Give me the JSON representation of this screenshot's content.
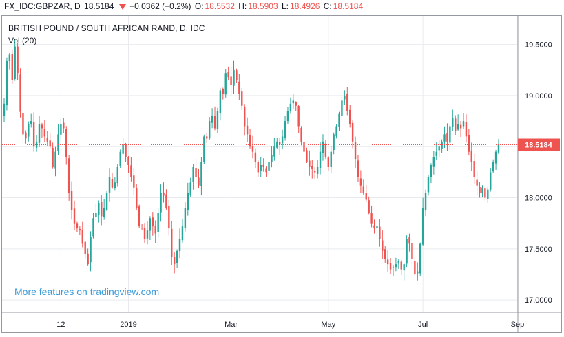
{
  "header": {
    "symbol": "FX_IDC:GBPZAR, D",
    "last": "18.5184",
    "change": "−0.0362 (−0.2%)",
    "o_label": "O:",
    "o_value": "18.5532",
    "h_label": "H:",
    "h_value": "18.5903",
    "l_label": "L:",
    "l_value": "18.4926",
    "c_label": "C:",
    "c_value": "18.5184"
  },
  "legend": {
    "title": "BRITISH POUND / SOUTH AFRICAN RAND, D, IDC",
    "volume": "Vol (20)"
  },
  "promo": "More features on tradingview.com",
  "colors": {
    "up": "#26a69a",
    "down": "#ef5350",
    "grid": "#e8eaee",
    "axis_text": "#131722",
    "price_line": "#ef5350"
  },
  "chart_data": {
    "type": "candlestick",
    "ylim": [
      16.88,
      19.78
    ],
    "y_ticks": [
      "19.5000",
      "19.0000",
      "18.5000",
      "18.0000",
      "17.5000",
      "17.0000"
    ],
    "y_tick_values": [
      19.5,
      19.0,
      18.5,
      18.0,
      17.5,
      17.0
    ],
    "x_ticks": [
      "12",
      "2019",
      "Mar",
      "May",
      "Jul",
      "Sep"
    ],
    "x_tick_index": [
      21,
      46,
      84,
      120,
      155,
      190
    ],
    "last_price": 18.5184,
    "last_price_label": "18.5184",
    "closes": [
      18.92,
      19.34,
      19.4,
      19.15,
      19.48,
      19.22,
      18.84,
      18.62,
      18.58,
      18.72,
      18.75,
      18.5,
      18.55,
      18.72,
      18.68,
      18.6,
      18.55,
      18.5,
      18.3,
      18.45,
      18.62,
      18.72,
      18.68,
      18.4,
      18.05,
      17.88,
      17.75,
      17.7,
      17.68,
      17.55,
      17.45,
      17.35,
      17.62,
      17.8,
      17.85,
      17.95,
      17.82,
      17.9,
      18.05,
      18.2,
      18.1,
      18.15,
      18.3,
      18.45,
      18.52,
      18.4,
      18.32,
      18.2,
      18.1,
      17.9,
      17.72,
      17.7,
      17.6,
      17.68,
      17.8,
      17.72,
      17.65,
      17.85,
      18.05,
      18.02,
      17.9,
      17.7,
      17.42,
      17.35,
      17.48,
      17.6,
      17.72,
      17.9,
      18.05,
      18.15,
      18.3,
      18.2,
      18.12,
      18.35,
      18.6,
      18.58,
      18.75,
      18.8,
      18.68,
      18.85,
      19.05,
      19.02,
      19.22,
      19.18,
      19.1,
      19.25,
      19.15,
      19.02,
      18.9,
      18.7,
      18.62,
      18.5,
      18.45,
      18.35,
      18.25,
      18.32,
      18.3,
      18.25,
      18.35,
      18.42,
      18.5,
      18.55,
      18.52,
      18.6,
      18.75,
      18.85,
      18.92,
      18.95,
      18.9,
      18.7,
      18.55,
      18.45,
      18.35,
      18.3,
      18.28,
      18.25,
      18.3,
      18.45,
      18.55,
      18.4,
      18.3,
      18.45,
      18.62,
      18.7,
      18.82,
      18.95,
      19.0,
      18.85,
      18.72,
      18.55,
      18.38,
      18.2,
      18.12,
      18.05,
      17.98,
      17.85,
      17.75,
      17.7,
      17.72,
      17.6,
      17.48,
      17.4,
      17.35,
      17.3,
      17.32,
      17.35,
      17.38,
      17.3,
      17.35,
      17.6,
      17.55,
      17.4,
      17.25,
      17.28,
      17.55,
      17.9,
      18.05,
      18.2,
      18.32,
      18.4,
      18.45,
      18.5,
      18.55,
      18.62,
      18.55,
      18.7,
      18.78,
      18.65,
      18.72,
      18.68,
      18.75,
      18.6,
      18.45,
      18.35,
      18.2,
      18.12,
      18.05,
      18.1,
      18.0,
      18.08,
      18.25,
      18.35,
      18.45,
      18.5184
    ]
  }
}
